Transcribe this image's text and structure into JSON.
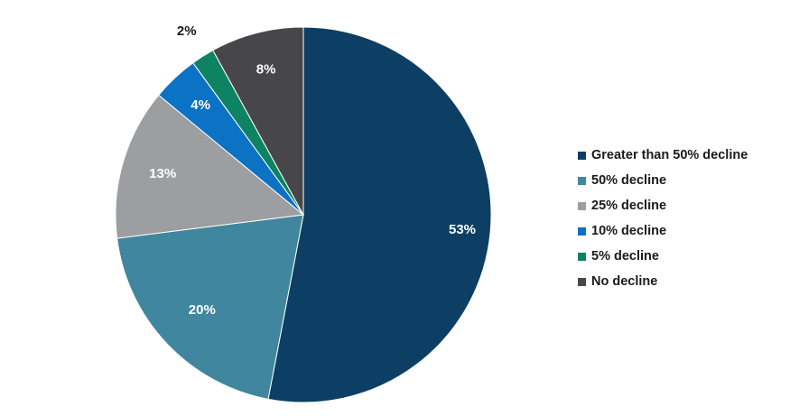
{
  "chart_data": {
    "type": "pie",
    "title": "",
    "start_angle_deg": 0,
    "direction": "clockwise",
    "legend_position": "right",
    "slices": [
      {
        "name": "Greater than 50% decline",
        "value": 53,
        "label": "53%",
        "color": "#0c3f63",
        "label_color": "#ffffff"
      },
      {
        "name": "50% decline",
        "value": 20,
        "label": "20%",
        "color": "#40869e",
        "label_color": "#ffffff"
      },
      {
        "name": "25% decline",
        "value": 13,
        "label": "13%",
        "color": "#9d9ea1",
        "label_color": "#ffffff"
      },
      {
        "name": "10% decline",
        "value": 4,
        "label": "4%",
        "color": "#0b72c4",
        "label_color": "#ffffff"
      },
      {
        "name": "5% decline",
        "value": 2,
        "label": "2%",
        "color": "#0e8363",
        "label_color": "#1a1a1a"
      },
      {
        "name": "No decline",
        "value": 8,
        "label": "8%",
        "color": "#47474a",
        "label_color": "#ffffff"
      }
    ]
  }
}
